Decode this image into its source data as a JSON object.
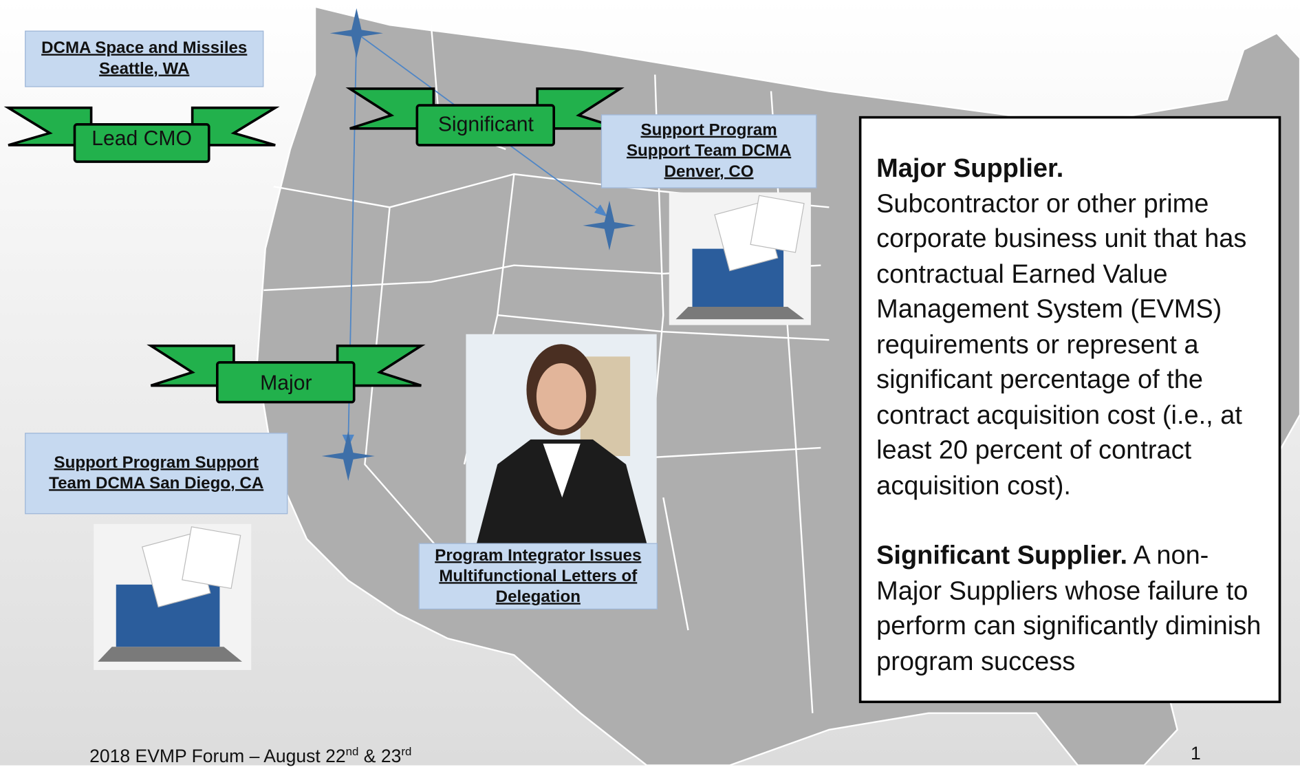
{
  "labels": {
    "seattle": "DCMA Space and Missiles Seattle, WA",
    "denver": "Support Program Support Team DCMA Denver, CO",
    "san_diego": "Support Program Support Team DCMA San Diego, CA",
    "integrator": "Program Integrator Issues Multifunctional Letters of Delegation"
  },
  "ribbons": {
    "lead": "Lead CMO",
    "significant": "Significant",
    "major": "Major"
  },
  "definitions": {
    "major_term": "Major Supplier.",
    "major_text": "Subcontractor or other prime corporate business unit that has contractual Earned Value Management System (EVMS) requirements or represent a significant percentage of the contract acquisition cost (i.e., at least 20 percent of contract acquisition cost).",
    "significant_term": "Significant Supplier.",
    "significant_text": "A non-Major Suppliers whose failure to perform can significantly diminish program success"
  },
  "footer": {
    "text": "2018 EVMP Forum – August 22",
    "sup1": "nd",
    "mid": " & 23",
    "sup2": "rd",
    "page": "1"
  }
}
